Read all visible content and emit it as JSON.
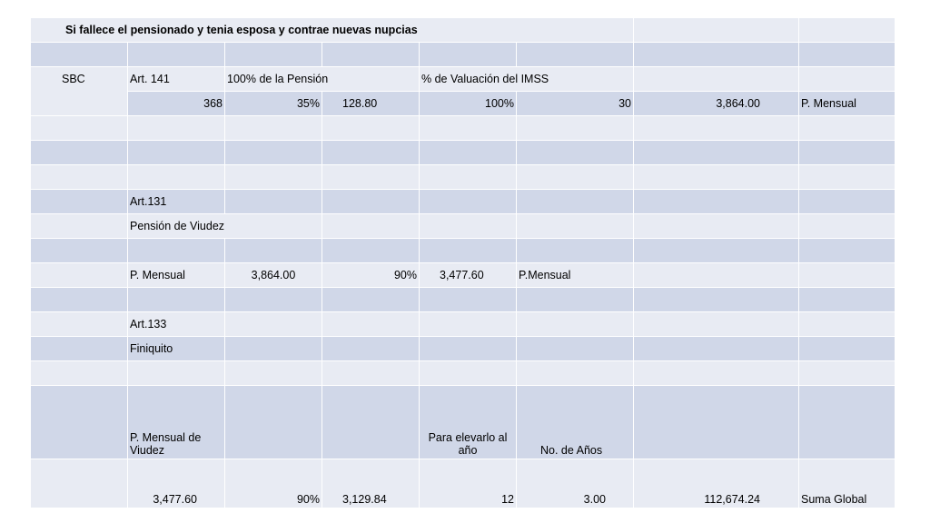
{
  "title": "Si fallece el pensionado y tenia esposa y contrae nuevas nupcias",
  "header_row": {
    "art141": "Art. 141",
    "pct_pension": "100% de la Pensión",
    "pct_valuacion": "% de Valuación del IMSS"
  },
  "sbc_label": "SBC",
  "sbc_row": {
    "v1": "368",
    "v2": "35%",
    "v3": "128.80",
    "v4": "100%",
    "v5": "30",
    "v6": "3,864.00",
    "v7": "P. Mensual"
  },
  "art131": "Art.131",
  "pension_viudez": "Pensión de Viudez",
  "mensual_row": {
    "label": "P. Mensual",
    "amount": "3,864.00",
    "pct": "90%",
    "result": "3,477.60",
    "suffix": "P.Mensual"
  },
  "art133": "Art.133",
  "finiquito": "Finiquito",
  "finiquito_headers": {
    "col1": "P. Mensual de Viudez",
    "col2": "Para elevarlo al año",
    "col3": "No. de Años"
  },
  "final_row": {
    "v1": "3,477.60",
    "v2": "90%",
    "v3": "3,129.84",
    "v4": "12",
    "v5": "3.00",
    "v6": "112,674.24",
    "v7": "Suma Global"
  }
}
